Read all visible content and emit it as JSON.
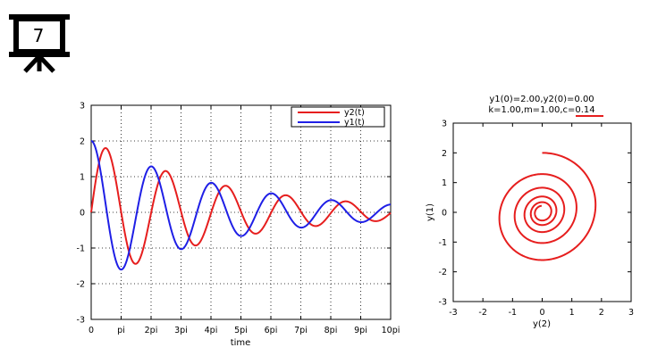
{
  "slide_icon": {
    "icon": "presentation-board-icon",
    "number": "7"
  },
  "colors": {
    "y1": "#1f1fe6",
    "y2": "#e61e1e",
    "grid": "#000000",
    "underline": "#e61e1e"
  },
  "chart_data": [
    {
      "id": "time-series",
      "type": "line",
      "xlabel": "time",
      "ylabel": "",
      "title": "",
      "xlim": [
        0,
        31.4159
      ],
      "ylim": [
        -3,
        3
      ],
      "x_ticks": [
        {
          "value": 0,
          "label": "0"
        },
        {
          "value": 3.14159,
          "label": "pi"
        },
        {
          "value": 6.28319,
          "label": "2pi"
        },
        {
          "value": 9.42478,
          "label": "3pi"
        },
        {
          "value": 12.56637,
          "label": "4pi"
        },
        {
          "value": 15.70796,
          "label": "5pi"
        },
        {
          "value": 18.84956,
          "label": "6pi"
        },
        {
          "value": 21.99115,
          "label": "7pi"
        },
        {
          "value": 25.13274,
          "label": "8pi"
        },
        {
          "value": 28.27433,
          "label": "9pi"
        },
        {
          "value": 31.41593,
          "label": "10pi"
        }
      ],
      "y_ticks": [
        -3,
        -2,
        -1,
        0,
        1,
        2,
        3
      ],
      "grid": true,
      "legend_position": "top-right",
      "model": {
        "k": 1.0,
        "m": 1.0,
        "c": 0.14,
        "y1_0": 2.0,
        "y2_0": 0.0
      },
      "series": [
        {
          "name": "y2(t)",
          "color": "#e61e1e",
          "points": [
            [
              0,
              0.0
            ],
            [
              1.5708,
              1.79
            ],
            [
              3.1416,
              -0.0
            ],
            [
              4.7124,
              -1.43
            ],
            [
              6.2832,
              0.0
            ],
            [
              7.854,
              1.15
            ],
            [
              9.4248,
              -0.0
            ],
            [
              10.9956,
              -0.92
            ],
            [
              12.5664,
              0.0
            ],
            [
              14.1372,
              0.74
            ],
            [
              15.708,
              -0.0
            ],
            [
              17.2788,
              -0.59
            ],
            [
              18.8496,
              0.0
            ],
            [
              20.4204,
              0.47
            ],
            [
              21.9911,
              -0.0
            ],
            [
              23.5619,
              -0.38
            ],
            [
              25.1327,
              0.0
            ],
            [
              26.7035,
              0.3
            ],
            [
              28.2743,
              -0.0
            ],
            [
              29.8451,
              -0.24
            ],
            [
              31.4159,
              0.0
            ]
          ]
        },
        {
          "name": "y1(t)",
          "color": "#1f1fe6",
          "points": [
            [
              0,
              2.0
            ],
            [
              1.5708,
              0.11
            ],
            [
              3.1416,
              -1.6
            ],
            [
              4.7124,
              -0.09
            ],
            [
              6.2832,
              1.29
            ],
            [
              7.854,
              0.07
            ],
            [
              9.4248,
              -1.03
            ],
            [
              10.9956,
              -0.06
            ],
            [
              12.5664,
              0.83
            ],
            [
              14.1372,
              0.05
            ],
            [
              15.708,
              -0.66
            ],
            [
              17.2788,
              -0.04
            ],
            [
              18.8496,
              0.53
            ],
            [
              20.4204,
              0.03
            ],
            [
              21.9911,
              -0.43
            ],
            [
              23.5619,
              -0.02
            ],
            [
              25.1327,
              0.34
            ],
            [
              26.7035,
              0.02
            ],
            [
              28.2743,
              -0.27
            ],
            [
              29.8451,
              -0.01
            ],
            [
              31.4159,
              0.22
            ]
          ]
        }
      ]
    },
    {
      "id": "phase-portrait",
      "type": "line",
      "title_line1": "y1(0)=2.00,y2(0)=0.00",
      "title_line2_prefix": "k=1.00,m=1.00,",
      "title_line2_highlight": "c=0.14",
      "xlabel": "y(2)",
      "ylabel": "y(1)",
      "xlim": [
        -3,
        3
      ],
      "ylim": [
        -3,
        3
      ],
      "x_ticks": [
        -3,
        -2,
        -1,
        0,
        1,
        2,
        3
      ],
      "y_ticks": [
        -3,
        -2,
        -1,
        0,
        1,
        2,
        3
      ],
      "grid": false,
      "series": [
        {
          "color": "#e61e1e",
          "x_series": "y2(t)",
          "y_series": "y1(t)",
          "t_range": [
            0,
            31.4159
          ]
        }
      ]
    }
  ]
}
